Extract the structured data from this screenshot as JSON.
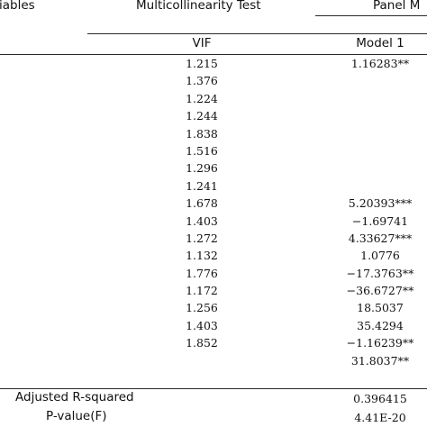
{
  "header": {
    "variables": "iables",
    "test_group": "Multicollinearity Test",
    "panel_group": "Panel M"
  },
  "subheader": {
    "vif": "VIF",
    "model": "Model 1"
  },
  "vif_values": [
    "1.215",
    "1.376",
    "1.224",
    "1.244",
    "1.838",
    "1.516",
    "1.296",
    "1.241",
    "1.678",
    "1.403",
    "1.272",
    "1.132",
    "1.776",
    "1.172",
    "1.256",
    "1.403",
    "1.852"
  ],
  "model_values": [
    "1.16283**",
    "",
    "",
    "",
    "",
    "",
    "",
    "",
    "5.20393***",
    "−1.69741",
    "4.33627***",
    "1.0776",
    "−17.3763**",
    "−36.6727**",
    "18.5037",
    "35.4294",
    "−1.16239**",
    "31.8037**"
  ],
  "stats": {
    "adj_r2_label": "Adjusted R-squared",
    "adj_r2_value": "0.396415",
    "pvalue_label": "P-value(F)",
    "pvalue_value": "4.41E-20"
  }
}
